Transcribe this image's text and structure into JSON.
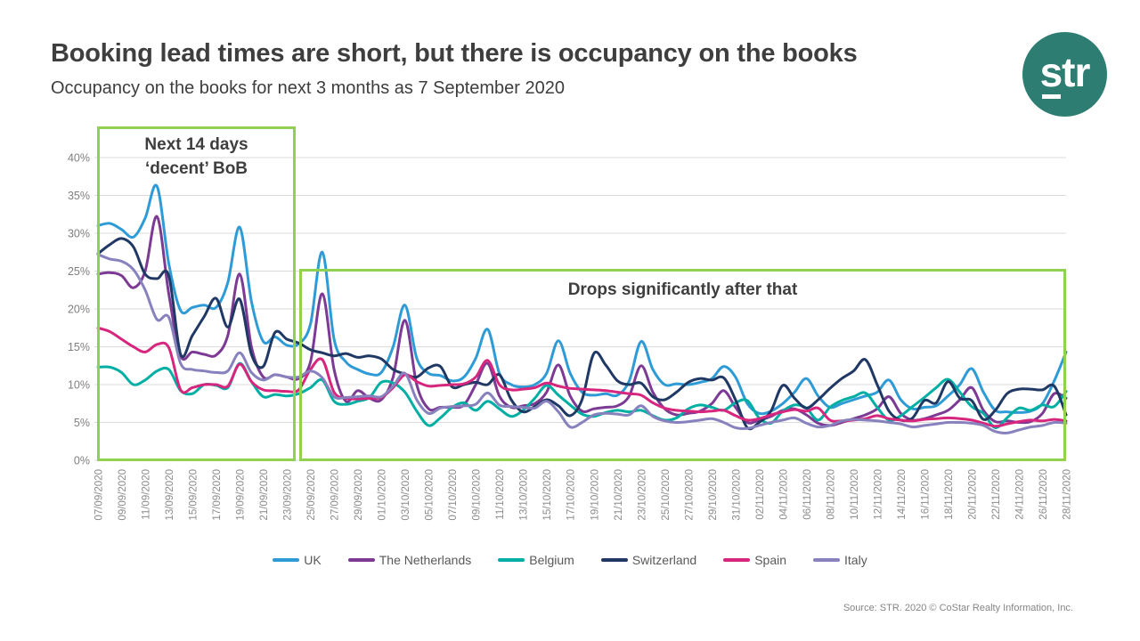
{
  "header": {
    "title": "Booking lead times are short, but there is occupancy on the books",
    "subtitle": "Occupancy on the books for next 3 months as 7 September 2020",
    "logo_text": "str",
    "logo_color": "#2D7D72"
  },
  "annotations": {
    "box1_line1": "Next 14 days",
    "box1_line2": "‘decent’ BoB",
    "box2_text": "Drops significantly after that",
    "box_color": "#92D050"
  },
  "source": "Source: STR. 2020 © CoStar Realty Information, Inc.",
  "colors": {
    "grid": "#DBDBDB",
    "axis_label": "#7F7F7F",
    "x_label": "#8C8C8C"
  },
  "chart_data": {
    "type": "line",
    "title": "",
    "xlabel": "",
    "ylabel": "",
    "ylim": [
      0,
      40
    ],
    "yticks": [
      "0%",
      "5%",
      "10%",
      "15%",
      "20%",
      "25%",
      "30%",
      "35%",
      "40%"
    ],
    "grid": "horizontal",
    "legend_position": "bottom",
    "x_label_every": 2,
    "x": [
      "07/09/2020",
      "08/09/2020",
      "09/09/2020",
      "10/09/2020",
      "11/09/2020",
      "12/09/2020",
      "13/09/2020",
      "14/09/2020",
      "15/09/2020",
      "16/09/2020",
      "17/09/2020",
      "18/09/2020",
      "19/09/2020",
      "20/09/2020",
      "21/09/2020",
      "22/09/2020",
      "23/09/2020",
      "24/09/2020",
      "25/09/2020",
      "26/09/2020",
      "27/09/2020",
      "28/09/2020",
      "29/09/2020",
      "30/09/2020",
      "01/10/2020",
      "02/10/2020",
      "03/10/2020",
      "04/10/2020",
      "05/10/2020",
      "06/10/2020",
      "07/10/2020",
      "08/10/2020",
      "09/10/2020",
      "10/10/2020",
      "11/10/2020",
      "12/10/2020",
      "13/10/2020",
      "14/10/2020",
      "15/10/2020",
      "16/10/2020",
      "17/10/2020",
      "18/10/2020",
      "19/10/2020",
      "20/10/2020",
      "21/10/2020",
      "22/10/2020",
      "23/10/2020",
      "24/10/2020",
      "25/10/2020",
      "26/10/2020",
      "27/10/2020",
      "28/10/2020",
      "29/10/2020",
      "30/10/2020",
      "31/10/2020",
      "01/11/2020",
      "02/11/2020",
      "03/11/2020",
      "04/11/2020",
      "05/11/2020",
      "06/11/2020",
      "07/11/2020",
      "08/11/2020",
      "09/11/2020",
      "10/11/2020",
      "11/11/2020",
      "12/11/2020",
      "13/11/2020",
      "14/11/2020",
      "15/11/2020",
      "16/11/2020",
      "17/11/2020",
      "18/11/2020",
      "19/11/2020",
      "20/11/2020",
      "21/11/2020",
      "22/11/2020",
      "23/11/2020",
      "24/11/2020",
      "25/11/2020",
      "26/11/2020",
      "27/11/2020",
      "28/11/2020"
    ],
    "series": [
      {
        "name": "UK",
        "color": "#2E9BD6",
        "values": [
          31.0,
          31.3,
          30.5,
          29.5,
          32.0,
          36.2,
          26.0,
          19.8,
          20.2,
          20.5,
          20.2,
          23.5,
          30.8,
          21.0,
          15.7,
          16.3,
          15.2,
          15.4,
          18.0,
          27.5,
          16.0,
          13.0,
          12.0,
          11.4,
          11.6,
          15.0,
          20.5,
          13.5,
          11.5,
          11.2,
          10.5,
          11.0,
          13.5,
          17.3,
          11.5,
          10.0,
          9.7,
          10.0,
          11.5,
          15.8,
          11.5,
          9.0,
          8.6,
          8.8,
          8.6,
          10.5,
          15.7,
          12.0,
          10.0,
          10.1,
          10.0,
          10.3,
          10.8,
          12.4,
          11.0,
          7.5,
          6.2,
          6.5,
          7.5,
          9.0,
          10.8,
          8.5,
          7.0,
          7.5,
          8.0,
          8.5,
          9.0,
          10.6,
          8.0,
          6.8,
          7.0,
          7.2,
          8.5,
          10.0,
          12.1,
          9.0,
          6.6,
          6.4,
          6.3,
          6.5,
          7.5,
          10.5,
          14.3
        ]
      },
      {
        "name": "The Netherlands",
        "color": "#7C3A94",
        "values": [
          24.6,
          24.8,
          24.4,
          22.8,
          25.0,
          32.2,
          22.0,
          13.8,
          14.3,
          14.0,
          13.9,
          16.5,
          24.6,
          15.0,
          11.0,
          11.3,
          11.0,
          10.8,
          13.0,
          22.0,
          12.0,
          7.8,
          9.2,
          8.2,
          8.0,
          11.0,
          18.5,
          10.0,
          6.8,
          7.0,
          7.0,
          7.3,
          10.0,
          12.8,
          8.5,
          7.0,
          7.2,
          7.5,
          9.0,
          12.6,
          8.5,
          6.5,
          6.8,
          7.0,
          7.2,
          8.5,
          12.5,
          9.0,
          6.8,
          6.0,
          6.2,
          6.5,
          7.5,
          9.2,
          7.0,
          5.0,
          5.3,
          5.8,
          6.6,
          6.8,
          6.0,
          4.9,
          4.6,
          5.0,
          5.5,
          6.0,
          6.8,
          8.4,
          6.2,
          5.3,
          5.5,
          6.0,
          6.6,
          8.0,
          9.6,
          6.6,
          5.1,
          5.2,
          5.0,
          5.1,
          6.2,
          8.8,
          8.2
        ]
      },
      {
        "name": "Belgium",
        "color": "#00AFA3",
        "values": [
          12.3,
          12.3,
          11.6,
          10.0,
          10.6,
          11.8,
          12.0,
          9.2,
          8.8,
          10.0,
          9.9,
          9.6,
          12.8,
          10.4,
          8.4,
          8.7,
          8.5,
          8.8,
          9.6,
          10.6,
          7.8,
          7.4,
          7.8,
          8.3,
          10.3,
          10.2,
          9.0,
          6.5,
          4.6,
          5.6,
          7.0,
          7.6,
          6.6,
          7.8,
          6.8,
          5.8,
          6.6,
          8.2,
          9.9,
          8.6,
          7.3,
          6.1,
          5.8,
          6.3,
          6.6,
          6.4,
          6.6,
          5.9,
          5.3,
          5.6,
          6.8,
          7.3,
          7.0,
          6.6,
          7.6,
          7.9,
          5.6,
          4.9,
          6.5,
          7.3,
          6.9,
          5.3,
          7.0,
          7.9,
          8.4,
          8.9,
          7.0,
          5.3,
          5.9,
          7.1,
          8.3,
          9.6,
          10.7,
          9.0,
          7.1,
          6.2,
          4.3,
          5.6,
          6.9,
          6.6,
          7.3,
          7.1,
          9.1
        ]
      },
      {
        "name": "Switzerland",
        "color": "#203864",
        "values": [
          27.3,
          28.5,
          29.3,
          28.2,
          24.6,
          24.0,
          24.4,
          14.0,
          16.5,
          19.0,
          21.4,
          17.6,
          21.3,
          14.0,
          12.4,
          16.9,
          16.0,
          15.5,
          14.6,
          14.2,
          13.8,
          14.1,
          13.6,
          13.8,
          13.4,
          12.0,
          11.4,
          11.0,
          12.2,
          12.4,
          9.7,
          10.0,
          10.3,
          10.0,
          11.3,
          8.0,
          6.4,
          7.1,
          8.0,
          7.2,
          5.9,
          8.0,
          14.1,
          12.6,
          10.5,
          10.0,
          10.2,
          8.4,
          8.0,
          9.0,
          10.3,
          10.8,
          10.6,
          10.9,
          8.0,
          4.3,
          5.0,
          6.5,
          9.9,
          8.2,
          6.9,
          8.0,
          9.5,
          10.8,
          11.8,
          13.3,
          10.0,
          6.5,
          5.3,
          5.6,
          7.9,
          7.6,
          10.4,
          8.2,
          7.9,
          5.4,
          6.6,
          8.8,
          9.4,
          9.4,
          9.3,
          9.8,
          6.0
        ]
      },
      {
        "name": "Spain",
        "color": "#D6267E",
        "values": [
          17.5,
          17.0,
          16.0,
          15.0,
          14.3,
          15.3,
          14.9,
          9.3,
          9.6,
          10.0,
          10.0,
          9.8,
          12.7,
          10.4,
          9.3,
          9.2,
          9.1,
          9.3,
          12.0,
          13.3,
          9.0,
          8.2,
          8.1,
          8.2,
          8.3,
          9.6,
          11.3,
          10.4,
          9.8,
          9.9,
          10.0,
          10.1,
          11.0,
          13.2,
          10.0,
          9.3,
          9.4,
          9.6,
          10.2,
          9.8,
          9.5,
          9.4,
          9.3,
          9.2,
          9.0,
          8.8,
          8.6,
          7.6,
          6.9,
          6.6,
          6.5,
          6.4,
          6.5,
          6.6,
          5.9,
          5.3,
          5.5,
          6.0,
          6.4,
          6.7,
          6.5,
          6.9,
          5.3,
          5.2,
          5.3,
          5.5,
          5.9,
          5.5,
          5.3,
          5.2,
          5.4,
          5.5,
          5.6,
          5.5,
          5.3,
          4.9,
          4.5,
          4.8,
          5.1,
          5.3,
          5.2,
          5.4,
          5.2
        ]
      },
      {
        "name": "Italy",
        "color": "#8782BE",
        "values": [
          27.2,
          26.6,
          26.3,
          25.2,
          22.5,
          18.6,
          18.9,
          12.8,
          12.0,
          11.8,
          11.6,
          11.8,
          14.2,
          11.6,
          10.6,
          11.3,
          11.0,
          11.0,
          11.8,
          10.9,
          8.4,
          8.3,
          8.4,
          8.5,
          8.4,
          9.8,
          11.5,
          8.0,
          6.2,
          6.9,
          7.1,
          7.2,
          7.4,
          8.9,
          7.3,
          7.1,
          7.0,
          6.9,
          7.8,
          6.4,
          4.4,
          5.0,
          6.0,
          6.2,
          6.1,
          6.0,
          7.2,
          5.8,
          5.2,
          5.0,
          5.1,
          5.3,
          5.5,
          5.0,
          4.3,
          4.2,
          4.6,
          5.0,
          5.3,
          5.6,
          4.9,
          4.4,
          4.6,
          5.2,
          5.4,
          5.3,
          5.2,
          5.0,
          4.8,
          4.4,
          4.6,
          4.8,
          5.0,
          5.0,
          4.9,
          4.6,
          3.8,
          3.6,
          4.0,
          4.4,
          4.6,
          5.0,
          4.9
        ]
      }
    ]
  }
}
